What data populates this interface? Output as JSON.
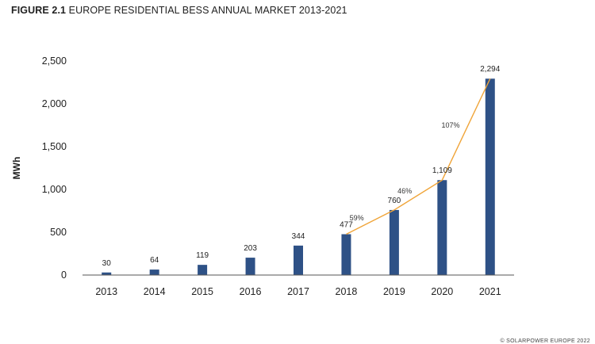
{
  "figure": {
    "number": "FIGURE 2.1",
    "title": "EUROPE RESIDENTIAL BESS ANNUAL MARKET 2013-2021"
  },
  "footer": {
    "copyright": "© SOLARPOWER EUROPE 2022"
  },
  "colors": {
    "bar": "#2e5186",
    "growth_line": "#f0a53a"
  },
  "chart_data": {
    "type": "bar",
    "title": "EUROPE RESIDENTIAL BESS ANNUAL MARKET 2013-2021",
    "xlabel": "",
    "ylabel": "MWh",
    "ylim": [
      0,
      2500
    ],
    "yticks": [
      0,
      500,
      1000,
      1500,
      2000,
      2500
    ],
    "ytick_labels": [
      "0",
      "500",
      "1,000",
      "1,500",
      "2,000",
      "2,500"
    ],
    "grid": false,
    "categories": [
      "2013",
      "2014",
      "2015",
      "2016",
      "2017",
      "2018",
      "2019",
      "2020",
      "2021"
    ],
    "values": [
      30,
      64,
      119,
      203,
      344,
      477,
      760,
      1109,
      2294
    ],
    "value_labels": [
      "30",
      "64",
      "119",
      "203",
      "344",
      "477",
      "760",
      "1,109",
      "2,294"
    ],
    "growth_line": {
      "from": "2018",
      "to": "2021",
      "labels": [
        "59%",
        "46%",
        "107%"
      ]
    }
  }
}
